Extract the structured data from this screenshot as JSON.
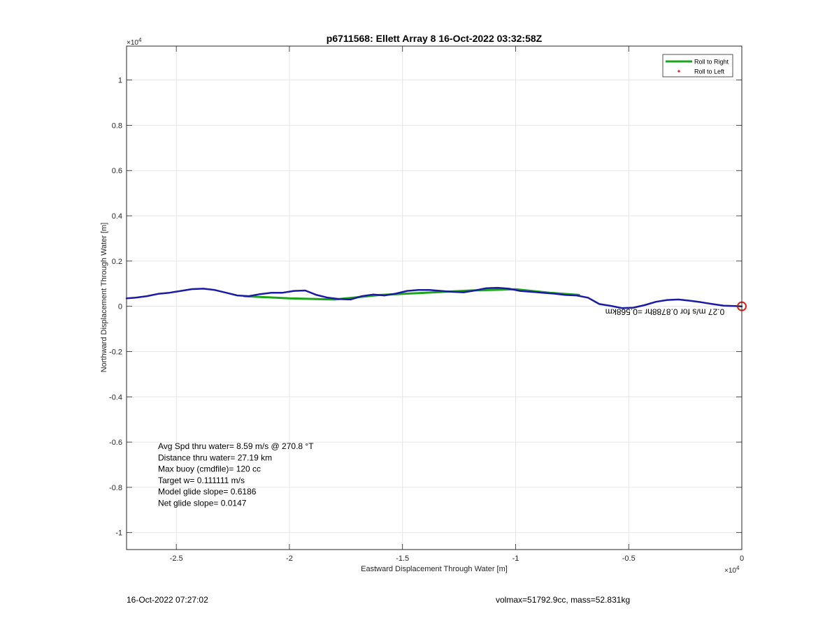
{
  "chart_data": {
    "type": "line",
    "title": "p6711568: Ellett Array 8 16-Oct-2022 03:32:58Z",
    "xlabel": "Eastward Displacement Through Water [m]",
    "ylabel": "Northward Displacement Through Water [m]",
    "xlim": [
      -27200,
      0
    ],
    "ylim": [
      -10750,
      11500
    ],
    "x_ticks": [
      -25000,
      -20000,
      -15000,
      -10000,
      -5000,
      0
    ],
    "x_tick_labels": [
      "-2.5",
      "-2",
      "-1.5",
      "-1",
      "-0.5",
      "0"
    ],
    "y_ticks": [
      -10000,
      -8000,
      -6000,
      -4000,
      -2000,
      0,
      2000,
      4000,
      6000,
      8000,
      10000
    ],
    "y_tick_labels": [
      "-1",
      "-0.8",
      "-0.6",
      "-0.4",
      "-0.2",
      "0",
      "0.2",
      "0.4",
      "0.6",
      "0.8",
      "1"
    ],
    "x_exponent": "×10",
    "x_exponent_power": "4",
    "y_exponent": "×10",
    "y_exponent_power": "4",
    "grid": true,
    "legend": {
      "placement": "top-right",
      "entries": [
        {
          "label": "Roll to Right",
          "color": "#1aa51a",
          "style": "line"
        },
        {
          "label": "Roll to Left",
          "color": "#e0201e",
          "style": "dot"
        }
      ]
    },
    "series": [
      {
        "name": "Roll to Right",
        "color": "#1aa51a",
        "x": [
          -22000,
          -20000,
          -18000,
          -16000,
          -14000,
          -12000,
          -10000,
          -8500,
          -7200
        ],
        "y": [
          450,
          350,
          300,
          500,
          600,
          700,
          750,
          600,
          500
        ]
      },
      {
        "name": "",
        "color": "#1a1aa5",
        "x": [
          -27200,
          -26800,
          -26300,
          -25800,
          -25300,
          -24800,
          -24300,
          -23800,
          -23300,
          -22800,
          -22300,
          -21800,
          -21300,
          -20800,
          -20300,
          -19800,
          -19300,
          -18800,
          -18300,
          -17800,
          -17300,
          -16800,
          -16300,
          -15800,
          -15300,
          -14800,
          -14300,
          -13800,
          -13300,
          -12800,
          -12300,
          -11800,
          -11300,
          -10800,
          -10300,
          -9800,
          -9300,
          -8800,
          -8300,
          -7800,
          -7300,
          -6800,
          -6300,
          -5800,
          -5300,
          -4800,
          -4300,
          -3800,
          -3300,
          -2800,
          -2300,
          -1800,
          -1300,
          -800,
          -300,
          0
        ],
        "y": [
          350,
          380,
          450,
          550,
          600,
          680,
          760,
          780,
          720,
          600,
          480,
          450,
          540,
          600,
          600,
          680,
          700,
          500,
          380,
          320,
          300,
          450,
          520,
          480,
          560,
          680,
          720,
          720,
          680,
          640,
          620,
          700,
          800,
          820,
          780,
          680,
          640,
          600,
          560,
          500,
          480,
          380,
          100,
          20,
          -80,
          -60,
          50,
          200,
          280,
          300,
          250,
          180,
          100,
          30,
          10,
          0
        ]
      }
    ],
    "annotations": [
      "Avg Spd thru water=  8.59 m/s @ 270.8 °T",
      "Distance thru water= 27.19 km",
      "Max buoy (cmdfile)= 120 cc",
      "Target w= 0.111111 m/s",
      "Model glide slope= 0.6186",
      "Net glide slope= 0.0147"
    ],
    "upside_down_label": "0.27 m/s for 0.8788hr =0.568km",
    "end_marker": {
      "x": 0,
      "y": 0,
      "color": "#e0201e"
    }
  },
  "footer": {
    "date": "16-Oct-2022 07:27:02",
    "info": "volmax=51792.9cc, mass=52.831kg"
  }
}
